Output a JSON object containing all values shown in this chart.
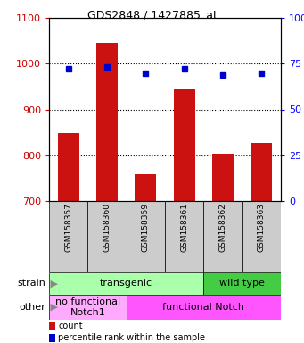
{
  "title": "GDS2848 / 1427885_at",
  "samples": [
    "GSM158357",
    "GSM158360",
    "GSM158359",
    "GSM158361",
    "GSM158362",
    "GSM158363"
  ],
  "counts": [
    848,
    1045,
    758,
    943,
    803,
    826
  ],
  "percentiles": [
    72,
    73,
    70,
    72,
    69,
    70
  ],
  "ylim_left": [
    700,
    1100
  ],
  "ylim_right": [
    0,
    100
  ],
  "yticks_left": [
    700,
    800,
    900,
    1000,
    1100
  ],
  "yticks_right": [
    0,
    25,
    50,
    75,
    100
  ],
  "bar_color": "#cc1111",
  "dot_color": "#0000cc",
  "bar_bottom": 700,
  "strain_boundaries": [
    [
      0,
      4,
      "transgenic",
      "#aaffaa"
    ],
    [
      4,
      6,
      "wild type",
      "#44cc44"
    ]
  ],
  "other_boundaries": [
    [
      0,
      2,
      "no functional\nNotch1",
      "#ffaaff"
    ],
    [
      2,
      6,
      "functional Notch",
      "#ff55ff"
    ]
  ],
  "sample_box_color": "#cccccc",
  "bg_color": "#ffffff"
}
